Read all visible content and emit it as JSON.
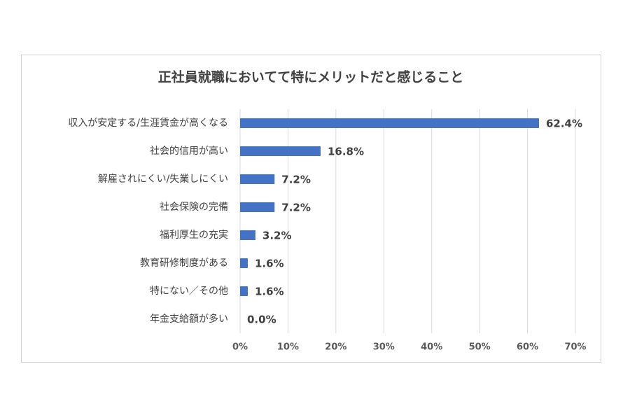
{
  "chart_data": {
    "type": "hbar",
    "title": "正社員就職においてて特にメリットだと感じること",
    "categories": [
      "収入が安定する/生涯賃金が高くなる",
      "社会的信用が高い",
      "解雇されにくい/失業しにくい",
      "社会保険の完備",
      "福利厚生の充実",
      "教育研修制度がある",
      "特にない／その他",
      "年金支給額が多い"
    ],
    "values": [
      62.4,
      16.8,
      7.2,
      7.2,
      3.2,
      1.6,
      1.6,
      0.0
    ],
    "value_labels": [
      "62.4%",
      "16.8%",
      "7.2%",
      "7.2%",
      "3.2%",
      "1.6%",
      "1.6%",
      "0.0%"
    ],
    "color": "#4472c4",
    "xlim": [
      0,
      70
    ],
    "xticks": [
      {
        "value": 0,
        "label": "0%"
      },
      {
        "value": 10,
        "label": "10%"
      },
      {
        "value": 20,
        "label": "20%"
      },
      {
        "value": 30,
        "label": "30%"
      },
      {
        "value": 40,
        "label": "40%"
      },
      {
        "value": 50,
        "label": "50%"
      },
      {
        "value": 60,
        "label": "60%"
      },
      {
        "value": 70,
        "label": "70%"
      }
    ],
    "grid": true
  }
}
